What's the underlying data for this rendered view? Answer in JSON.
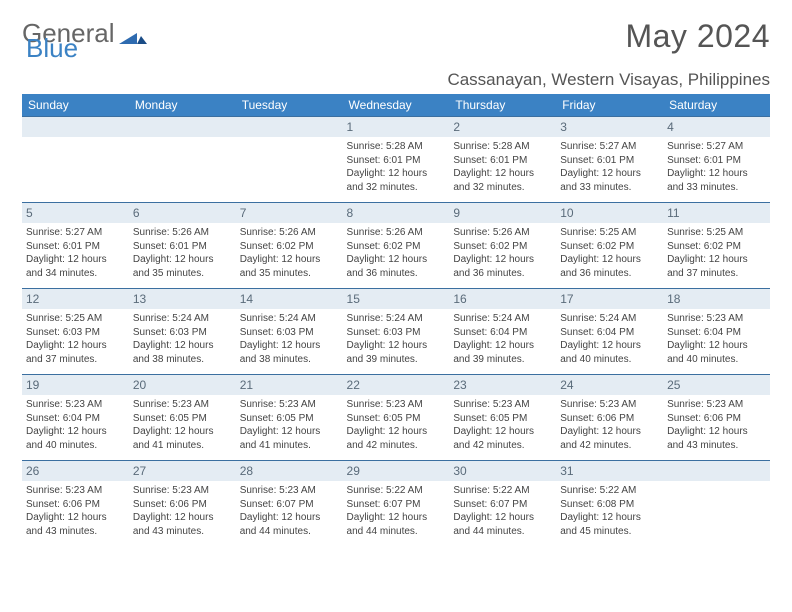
{
  "logo": {
    "part1": "General",
    "part2": "Blue"
  },
  "title": "May 2024",
  "location": "Cassanayan, Western Visayas, Philippines",
  "colors": {
    "header_bg": "#3b82c4",
    "header_text": "#ffffff",
    "daynum_bg": "#e4ecf3",
    "daynum_text": "#5a6b7a",
    "row_border": "#3b6fa0",
    "body_text": "#444444",
    "title_text": "#555555"
  },
  "day_headers": [
    "Sunday",
    "Monday",
    "Tuesday",
    "Wednesday",
    "Thursday",
    "Friday",
    "Saturday"
  ],
  "weeks": [
    [
      {
        "n": "",
        "sr": "",
        "ss": "",
        "dl": ""
      },
      {
        "n": "",
        "sr": "",
        "ss": "",
        "dl": ""
      },
      {
        "n": "",
        "sr": "",
        "ss": "",
        "dl": ""
      },
      {
        "n": "1",
        "sr": "5:28 AM",
        "ss": "6:01 PM",
        "dl": "12 hours and 32 minutes."
      },
      {
        "n": "2",
        "sr": "5:28 AM",
        "ss": "6:01 PM",
        "dl": "12 hours and 32 minutes."
      },
      {
        "n": "3",
        "sr": "5:27 AM",
        "ss": "6:01 PM",
        "dl": "12 hours and 33 minutes."
      },
      {
        "n": "4",
        "sr": "5:27 AM",
        "ss": "6:01 PM",
        "dl": "12 hours and 33 minutes."
      }
    ],
    [
      {
        "n": "5",
        "sr": "5:27 AM",
        "ss": "6:01 PM",
        "dl": "12 hours and 34 minutes."
      },
      {
        "n": "6",
        "sr": "5:26 AM",
        "ss": "6:01 PM",
        "dl": "12 hours and 35 minutes."
      },
      {
        "n": "7",
        "sr": "5:26 AM",
        "ss": "6:02 PM",
        "dl": "12 hours and 35 minutes."
      },
      {
        "n": "8",
        "sr": "5:26 AM",
        "ss": "6:02 PM",
        "dl": "12 hours and 36 minutes."
      },
      {
        "n": "9",
        "sr": "5:26 AM",
        "ss": "6:02 PM",
        "dl": "12 hours and 36 minutes."
      },
      {
        "n": "10",
        "sr": "5:25 AM",
        "ss": "6:02 PM",
        "dl": "12 hours and 36 minutes."
      },
      {
        "n": "11",
        "sr": "5:25 AM",
        "ss": "6:02 PM",
        "dl": "12 hours and 37 minutes."
      }
    ],
    [
      {
        "n": "12",
        "sr": "5:25 AM",
        "ss": "6:03 PM",
        "dl": "12 hours and 37 minutes."
      },
      {
        "n": "13",
        "sr": "5:24 AM",
        "ss": "6:03 PM",
        "dl": "12 hours and 38 minutes."
      },
      {
        "n": "14",
        "sr": "5:24 AM",
        "ss": "6:03 PM",
        "dl": "12 hours and 38 minutes."
      },
      {
        "n": "15",
        "sr": "5:24 AM",
        "ss": "6:03 PM",
        "dl": "12 hours and 39 minutes."
      },
      {
        "n": "16",
        "sr": "5:24 AM",
        "ss": "6:04 PM",
        "dl": "12 hours and 39 minutes."
      },
      {
        "n": "17",
        "sr": "5:24 AM",
        "ss": "6:04 PM",
        "dl": "12 hours and 40 minutes."
      },
      {
        "n": "18",
        "sr": "5:23 AM",
        "ss": "6:04 PM",
        "dl": "12 hours and 40 minutes."
      }
    ],
    [
      {
        "n": "19",
        "sr": "5:23 AM",
        "ss": "6:04 PM",
        "dl": "12 hours and 40 minutes."
      },
      {
        "n": "20",
        "sr": "5:23 AM",
        "ss": "6:05 PM",
        "dl": "12 hours and 41 minutes."
      },
      {
        "n": "21",
        "sr": "5:23 AM",
        "ss": "6:05 PM",
        "dl": "12 hours and 41 minutes."
      },
      {
        "n": "22",
        "sr": "5:23 AM",
        "ss": "6:05 PM",
        "dl": "12 hours and 42 minutes."
      },
      {
        "n": "23",
        "sr": "5:23 AM",
        "ss": "6:05 PM",
        "dl": "12 hours and 42 minutes."
      },
      {
        "n": "24",
        "sr": "5:23 AM",
        "ss": "6:06 PM",
        "dl": "12 hours and 42 minutes."
      },
      {
        "n": "25",
        "sr": "5:23 AM",
        "ss": "6:06 PM",
        "dl": "12 hours and 43 minutes."
      }
    ],
    [
      {
        "n": "26",
        "sr": "5:23 AM",
        "ss": "6:06 PM",
        "dl": "12 hours and 43 minutes."
      },
      {
        "n": "27",
        "sr": "5:23 AM",
        "ss": "6:06 PM",
        "dl": "12 hours and 43 minutes."
      },
      {
        "n": "28",
        "sr": "5:23 AM",
        "ss": "6:07 PM",
        "dl": "12 hours and 44 minutes."
      },
      {
        "n": "29",
        "sr": "5:22 AM",
        "ss": "6:07 PM",
        "dl": "12 hours and 44 minutes."
      },
      {
        "n": "30",
        "sr": "5:22 AM",
        "ss": "6:07 PM",
        "dl": "12 hours and 44 minutes."
      },
      {
        "n": "31",
        "sr": "5:22 AM",
        "ss": "6:08 PM",
        "dl": "12 hours and 45 minutes."
      },
      {
        "n": "",
        "sr": "",
        "ss": "",
        "dl": ""
      }
    ]
  ],
  "labels": {
    "sunrise": "Sunrise:",
    "sunset": "Sunset:",
    "daylight": "Daylight:"
  }
}
